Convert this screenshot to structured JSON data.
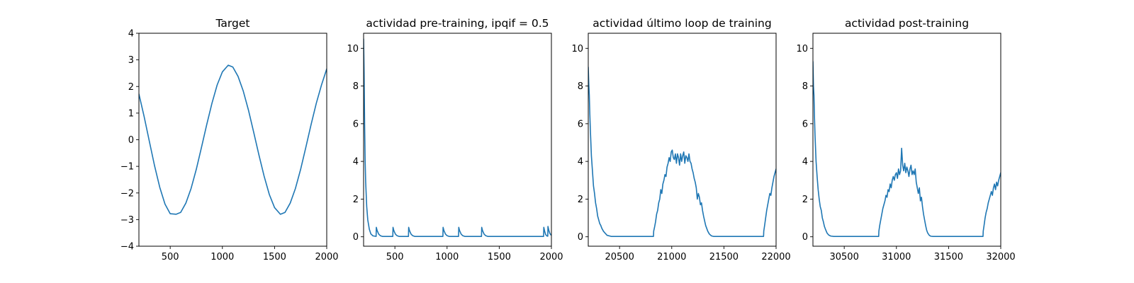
{
  "colors": {
    "series": "#1f77b4",
    "frame": "#000000",
    "background": "#ffffff"
  },
  "chart_data": [
    {
      "type": "line",
      "title": "Target",
      "xlabel": "",
      "ylabel": "",
      "xlim": [
        200,
        2000
      ],
      "ylim": [
        -4,
        4
      ],
      "xticks": [
        500,
        1000,
        1500,
        2000
      ],
      "yticks": [
        -4,
        -3,
        -2,
        -1,
        0,
        1,
        2,
        3,
        4
      ],
      "yticklabels": [
        "−4",
        "−3",
        "−2",
        "−1",
        "0",
        "1",
        "2",
        "3",
        "4"
      ],
      "grid": false,
      "series": [
        {
          "x": [
            200,
            250,
            300,
            350,
            400,
            450,
            500,
            556,
            600,
            650,
            700,
            750,
            800,
            850,
            900,
            950,
            1000,
            1056,
            1100,
            1150,
            1200,
            1250,
            1300,
            1350,
            1400,
            1450,
            1500,
            1556,
            1600,
            1650,
            1700,
            1750,
            1800,
            1850,
            1900,
            1950,
            2000
          ],
          "y": [
            1.72,
            0.87,
            -0.06,
            -0.98,
            -1.79,
            -2.42,
            -2.78,
            -2.8,
            -2.73,
            -2.38,
            -1.83,
            -1.11,
            -0.28,
            0.57,
            1.37,
            2.06,
            2.55,
            2.8,
            2.73,
            2.38,
            1.83,
            1.11,
            0.28,
            -0.57,
            -1.37,
            -2.06,
            -2.55,
            -2.8,
            -2.73,
            -2.38,
            -1.83,
            -1.11,
            -0.28,
            0.57,
            1.37,
            2.06,
            2.66
          ]
        }
      ]
    },
    {
      "type": "line",
      "title": "actividad pre-training, ipqif = 0.5",
      "xlabel": "",
      "ylabel": "",
      "xlim": [
        200,
        2000
      ],
      "ylim": [
        -0.5,
        10.8
      ],
      "xticks": [
        500,
        1000,
        1500,
        2000
      ],
      "yticks": [
        0,
        2,
        4,
        6,
        8,
        10
      ],
      "yticklabels": [
        "0",
        "2",
        "4",
        "6",
        "8",
        "10"
      ],
      "grid": false,
      "series": [
        {
          "x": [
            200,
            205,
            210,
            215,
            220,
            230,
            240,
            255,
            270,
            290,
            320,
            322,
            330,
            345,
            360,
            380,
            480,
            482,
            490,
            505,
            520,
            540,
            630,
            632,
            640,
            655,
            670,
            690,
            960,
            962,
            970,
            985,
            1000,
            1020,
            1110,
            1112,
            1120,
            1135,
            1150,
            1170,
            1330,
            1332,
            1340,
            1355,
            1370,
            1390,
            1925,
            1927,
            1935,
            1945,
            1955,
            1965,
            1967,
            1975,
            1985,
            1995,
            2000
          ],
          "y": [
            10.5,
            8.7,
            5.9,
            4.0,
            2.9,
            1.6,
            0.9,
            0.4,
            0.15,
            0.05,
            0.02,
            0.5,
            0.33,
            0.14,
            0.06,
            0.02,
            0.02,
            0.5,
            0.33,
            0.14,
            0.06,
            0.02,
            0.02,
            0.5,
            0.33,
            0.14,
            0.06,
            0.02,
            0.02,
            0.5,
            0.33,
            0.14,
            0.06,
            0.02,
            0.02,
            0.5,
            0.33,
            0.14,
            0.06,
            0.02,
            0.02,
            0.5,
            0.33,
            0.14,
            0.06,
            0.02,
            0.02,
            0.5,
            0.3,
            0.12,
            0.05,
            0.03,
            0.55,
            0.35,
            0.18,
            0.1,
            0.1
          ]
        }
      ]
    },
    {
      "type": "line",
      "title": "actividad último loop de training",
      "xlabel": "",
      "ylabel": "",
      "xlim": [
        20200,
        22000
      ],
      "ylim": [
        -0.5,
        10.8
      ],
      "xticks": [
        20500,
        21000,
        21500,
        22000
      ],
      "yticks": [
        0,
        2,
        4,
        6,
        8,
        10
      ],
      "yticklabels": [
        "0",
        "2",
        "4",
        "6",
        "8",
        "10"
      ],
      "grid": false,
      "series": [
        {
          "x": [
            20200,
            20205,
            20210,
            20215,
            20220,
            20230,
            20240,
            20250,
            20260,
            20270,
            20280,
            20290,
            20300,
            20310,
            20320,
            20330,
            20345,
            20360,
            20380,
            20420,
            20500,
            20600,
            20700,
            20800,
            20825,
            20827,
            20835,
            20845,
            20855,
            20865,
            20875,
            20885,
            20895,
            20905,
            20915,
            20925,
            20935,
            20945,
            20955,
            20965,
            20975,
            20985,
            20995,
            21005,
            21015,
            21025,
            21035,
            21045,
            21055,
            21065,
            21075,
            21085,
            21095,
            21105,
            21115,
            21125,
            21135,
            21145,
            21155,
            21165,
            21175,
            21185,
            21195,
            21205,
            21215,
            21225,
            21235,
            21245,
            21255,
            21265,
            21275,
            21285,
            21295,
            21305,
            21315,
            21325,
            21335,
            21345,
            21360,
            21380,
            21400,
            21450,
            21500,
            21600,
            21700,
            21800,
            21880,
            21882,
            21890,
            21900,
            21910,
            21920,
            21930,
            21940,
            21950,
            21960,
            21970,
            21980,
            21990,
            22000
          ],
          "y": [
            9.0,
            8.1,
            7.5,
            6.5,
            5.7,
            4.3,
            3.5,
            2.7,
            2.3,
            1.8,
            1.5,
            1.1,
            0.9,
            0.7,
            0.6,
            0.45,
            0.3,
            0.2,
            0.08,
            0.02,
            0.02,
            0.02,
            0.02,
            0.02,
            0.02,
            0.3,
            0.5,
            0.8,
            1.2,
            1.4,
            1.8,
            2.0,
            2.5,
            2.3,
            2.8,
            3.0,
            3.3,
            3.2,
            3.7,
            3.9,
            4.2,
            4.0,
            4.5,
            4.6,
            4.2,
            4.1,
            4.4,
            3.9,
            4.4,
            4.2,
            3.8,
            4.4,
            4.0,
            4.3,
            4.5,
            3.9,
            4.3,
            4.2,
            4.0,
            4.4,
            4.0,
            3.9,
            3.6,
            3.4,
            3.1,
            2.9,
            2.6,
            2.0,
            2.3,
            2.1,
            1.7,
            1.8,
            1.4,
            1.1,
            0.85,
            0.6,
            0.45,
            0.3,
            0.15,
            0.05,
            0.02,
            0.02,
            0.02,
            0.02,
            0.02,
            0.02,
            0.02,
            0.3,
            0.6,
            1.0,
            1.4,
            1.7,
            2.0,
            2.3,
            2.2,
            2.6,
            2.9,
            3.2,
            3.4,
            3.6
          ]
        }
      ]
    },
    {
      "type": "line",
      "title": "actividad post-training",
      "xlabel": "",
      "ylabel": "",
      "xlim": [
        30200,
        32000
      ],
      "ylim": [
        -0.5,
        10.8
      ],
      "xticks": [
        30500,
        31000,
        31500,
        32000
      ],
      "yticks": [
        0,
        2,
        4,
        6,
        8,
        10
      ],
      "yticklabels": [
        "0",
        "2",
        "4",
        "6",
        "8",
        "10"
      ],
      "grid": false,
      "series": [
        {
          "x": [
            30200,
            30205,
            30210,
            30215,
            30220,
            30230,
            30240,
            30250,
            30260,
            30270,
            30280,
            30290,
            30300,
            30310,
            30320,
            30335,
            30350,
            30370,
            30400,
            30500,
            30600,
            30700,
            30800,
            30830,
            30832,
            30840,
            30850,
            30860,
            30870,
            30880,
            30890,
            30900,
            30910,
            30920,
            30930,
            30940,
            30950,
            30960,
            30970,
            30980,
            30990,
            31000,
            31010,
            31020,
            31030,
            31040,
            31050,
            31060,
            31070,
            31080,
            31090,
            31100,
            31110,
            31120,
            31130,
            31140,
            31150,
            31160,
            31170,
            31180,
            31190,
            31200,
            31210,
            31220,
            31230,
            31240,
            31250,
            31260,
            31270,
            31280,
            31290,
            31300,
            31315,
            31330,
            31350,
            31380,
            31400,
            31500,
            31600,
            31700,
            31800,
            31830,
            31832,
            31840,
            31850,
            31860,
            31870,
            31880,
            31890,
            31900,
            31910,
            31920,
            31930,
            31940,
            31950,
            31960,
            31970,
            31980,
            31990,
            32000
          ],
          "y": [
            9.3,
            8.0,
            7.5,
            6.3,
            5.4,
            4.0,
            3.2,
            2.5,
            2.0,
            1.6,
            1.4,
            1.0,
            0.8,
            0.55,
            0.4,
            0.2,
            0.1,
            0.04,
            0.02,
            0.02,
            0.02,
            0.02,
            0.02,
            0.02,
            0.3,
            0.6,
            0.9,
            1.2,
            1.5,
            1.7,
            1.9,
            2.2,
            2.1,
            2.5,
            2.4,
            2.8,
            2.6,
            3.0,
            3.2,
            3.0,
            3.3,
            3.4,
            3.1,
            3.6,
            3.3,
            3.5,
            4.7,
            3.8,
            3.5,
            3.9,
            3.4,
            3.7,
            3.5,
            3.2,
            3.6,
            3.8,
            3.3,
            3.5,
            3.3,
            3.6,
            2.9,
            2.6,
            2.3,
            2.6,
            1.9,
            2.1,
            1.6,
            1.2,
            0.9,
            0.6,
            0.35,
            0.2,
            0.08,
            0.03,
            0.02,
            0.02,
            0.02,
            0.02,
            0.02,
            0.02,
            0.02,
            0.02,
            0.3,
            0.6,
            1.0,
            1.3,
            1.5,
            1.8,
            2.0,
            2.2,
            2.4,
            2.2,
            2.6,
            2.8,
            2.5,
            2.9,
            2.7,
            3.0,
            3.2,
            3.4
          ]
        }
      ]
    }
  ]
}
